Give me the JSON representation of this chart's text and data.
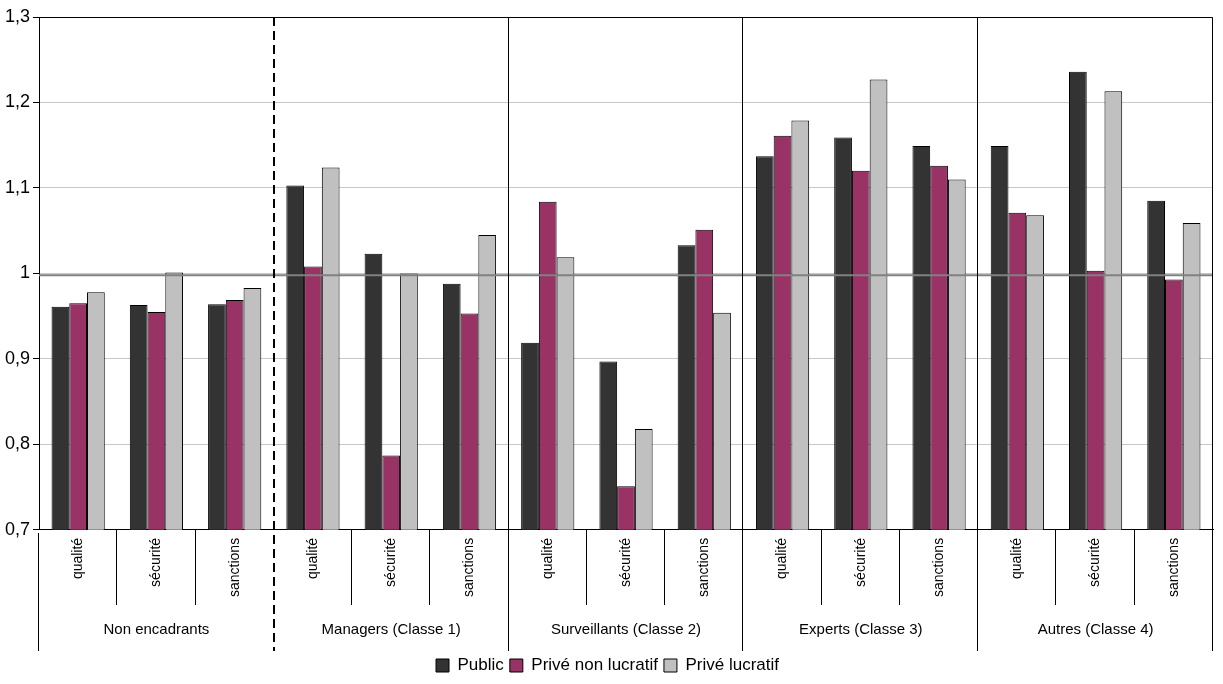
{
  "chart_data": {
    "type": "bar",
    "categories": [
      "qualité",
      "sécurité",
      "sanctions",
      "qualité",
      "sécurité",
      "sanctions",
      "qualité",
      "sécurité",
      "sanctions",
      "qualité",
      "sécurité",
      "sanctions",
      "qualité",
      "sécurité",
      "sanctions"
    ],
    "series": [
      {
        "name": "Public",
        "color": "#333333",
        "values": [
          0.961,
          0.963,
          0.964,
          1.103,
          1.023,
          0.988,
          0.919,
          0.897,
          1.033,
          1.137,
          1.159,
          1.149,
          1.149,
          1.236,
          1.085
        ]
      },
      {
        "name": "Privé non lucratif",
        "color": "#993366",
        "values": [
          0.965,
          0.955,
          0.969,
          1.008,
          0.787,
          0.953,
          1.084,
          0.751,
          1.051,
          1.161,
          1.12,
          1.126,
          1.071,
          1.003,
          0.993
        ]
      },
      {
        "name": "Privé lucratif",
        "color": "#c0c0c0",
        "values": [
          0.978,
          1.001,
          0.983,
          1.124,
          1.0,
          1.045,
          1.019,
          0.818,
          0.954,
          1.179,
          1.227,
          1.11,
          1.068,
          1.213,
          1.059
        ]
      }
    ],
    "annotations": [
      "Non encadrants",
      "Managers (Classe 1)",
      "Surveillants (Classe 2)",
      "Experts (Classe 3)",
      "Autres (Classe 4)"
    ],
    "ylim": [
      0.7,
      1.3
    ],
    "yticks": [
      {
        "value": 0.7,
        "label": "0,7"
      },
      {
        "value": 0.8,
        "label": "0,8"
      },
      {
        "value": 0.9,
        "label": "0,9"
      },
      {
        "value": 1,
        "label": "1"
      },
      {
        "value": 1.1,
        "label": "1,1"
      },
      {
        "value": 1.2,
        "label": "1,2"
      },
      {
        "value": 1.3,
        "label": "1,3"
      }
    ],
    "ref_lines": [
      {
        "axis": "y",
        "value": 0.998,
        "color": "#808080"
      }
    ],
    "grid": "y",
    "legend": "bottom"
  }
}
